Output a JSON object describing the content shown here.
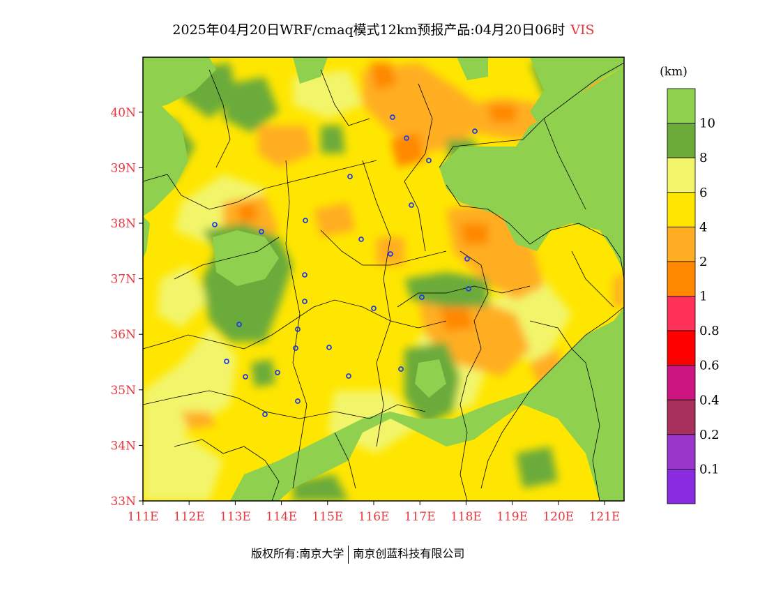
{
  "header": {
    "title": "2025年04月20日WRF/cmaq模式12km预报产品:04月20日06时",
    "variable": "VIS"
  },
  "colorbar": {
    "unit": "(km)",
    "levels": [
      {
        "color": "#8fd14f",
        "label": "10"
      },
      {
        "color": "#6aab3a",
        "label": "8"
      },
      {
        "color": "#f2f56a",
        "label": "6"
      },
      {
        "color": "#ffe600",
        "label": "4"
      },
      {
        "color": "#ffae24",
        "label": "2"
      },
      {
        "color": "#ff8800",
        "label": "1"
      },
      {
        "color": "#ff3158",
        "label": "0.8"
      },
      {
        "color": "#ff0000",
        "label": "0.6"
      },
      {
        "color": "#cc1580",
        "label": "0.4"
      },
      {
        "color": "#a8305c",
        "label": "0.2"
      },
      {
        "color": "#9a36c9",
        "label": "0.1"
      },
      {
        "color": "#8a2be2",
        "label": ""
      }
    ]
  },
  "axes": {
    "lat_ticks": [
      "33N",
      "34N",
      "35N",
      "36N",
      "37N",
      "38N",
      "39N",
      "40N"
    ],
    "lon_ticks": [
      "111E",
      "112E",
      "113E",
      "114E",
      "115E",
      "116E",
      "117E",
      "118E",
      "119E",
      "120E",
      "121E"
    ]
  },
  "footer": {
    "left": "版权所有:南京大学",
    "right": "南京创蓝科技有限公司"
  }
}
